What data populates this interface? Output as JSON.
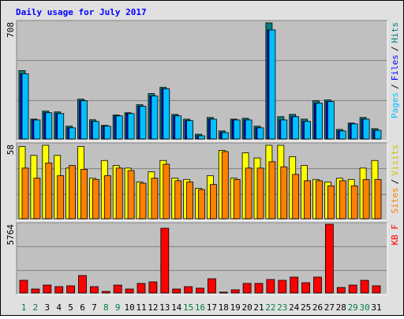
{
  "chart_data": [
    {
      "type": "bar",
      "title": "Daily usage for July 2017",
      "legend_separator": "/",
      "ylim": [
        0,
        708
      ],
      "yticks": [
        708
      ],
      "series": [
        {
          "name": "Hits",
          "color": "#008080",
          "values": [
            417,
            121,
            170,
            165,
            78,
            243,
            117,
            83,
            146,
            160,
            209,
            277,
            315,
            150,
            121,
            29,
            131,
            49,
            121,
            126,
            78,
            708,
            136,
            150,
            121,
            233,
            238,
            58,
            97,
            131,
            63
          ]
        },
        {
          "name": "Files",
          "color": "#0000ff",
          "values": [
            398,
            116,
            160,
            155,
            68,
            233,
            107,
            78,
            141,
            155,
            199,
            262,
            306,
            141,
            112,
            19,
            121,
            39,
            116,
            116,
            68,
            665,
            116,
            136,
            107,
            218,
            228,
            49,
            92,
            121,
            53
          ]
        },
        {
          "name": "Pages",
          "color": "#00c0ff",
          "values": [
            398,
            116,
            160,
            155,
            68,
            233,
            107,
            78,
            141,
            155,
            199,
            262,
            306,
            141,
            112,
            19,
            121,
            39,
            116,
            116,
            68,
            665,
            116,
            136,
            107,
            218,
            228,
            49,
            92,
            121,
            53
          ]
        }
      ]
    },
    {
      "type": "bar",
      "legend_separator": "/",
      "ylim": [
        0,
        58
      ],
      "yticks": [
        58
      ],
      "series": [
        {
          "name": "Visits",
          "color": "#ffff00",
          "text_color": "#c8c800",
          "values": [
            57,
            50,
            58,
            50,
            40,
            57,
            32,
            46,
            42,
            40,
            29,
            37,
            46,
            32,
            31,
            24,
            34,
            54,
            32,
            52,
            48,
            58,
            58,
            49,
            42,
            31,
            29,
            32,
            31,
            40,
            46
          ]
        },
        {
          "name": "Sites",
          "color": "#ff8000",
          "values": [
            40,
            32,
            44,
            34,
            42,
            39,
            31,
            34,
            40,
            38,
            28,
            32,
            43,
            30,
            29,
            23,
            27,
            53,
            31,
            40,
            40,
            45,
            41,
            35,
            30,
            30,
            26,
            30,
            26,
            31,
            31
          ]
        }
      ]
    },
    {
      "type": "bar",
      "ylim": [
        0,
        5764
      ],
      "yticks": [
        5764
      ],
      "series": [
        {
          "name": "KB F",
          "color": "#ff0000",
          "values": [
            1060,
            330,
            660,
            530,
            600,
            1460,
            530,
            130,
            660,
            330,
            800,
            930,
            5430,
            330,
            530,
            400,
            1190,
            70,
            265,
            800,
            800,
            1130,
            1060,
            1330,
            860,
            1330,
            5764,
            460,
            660,
            1060,
            600
          ]
        }
      ],
      "categories": [
        "1",
        "2",
        "3",
        "4",
        "5",
        "6",
        "7",
        "8",
        "9",
        "10",
        "11",
        "12",
        "13",
        "14",
        "15",
        "16",
        "17",
        "18",
        "19",
        "20",
        "21",
        "22",
        "23",
        "24",
        "25",
        "26",
        "27",
        "28",
        "29",
        "30",
        "31"
      ],
      "category_colors": [
        "#008040",
        "#008040",
        "#000000",
        "#000000",
        "#000000",
        "#000000",
        "#000000",
        "#008040",
        "#008040",
        "#000000",
        "#000000",
        "#000000",
        "#000000",
        "#000000",
        "#008040",
        "#008040",
        "#000000",
        "#000000",
        "#000000",
        "#000000",
        "#000000",
        "#008040",
        "#008040",
        "#000000",
        "#000000",
        "#000000",
        "#000000",
        "#000000",
        "#008040",
        "#008040",
        "#000000"
      ]
    }
  ]
}
